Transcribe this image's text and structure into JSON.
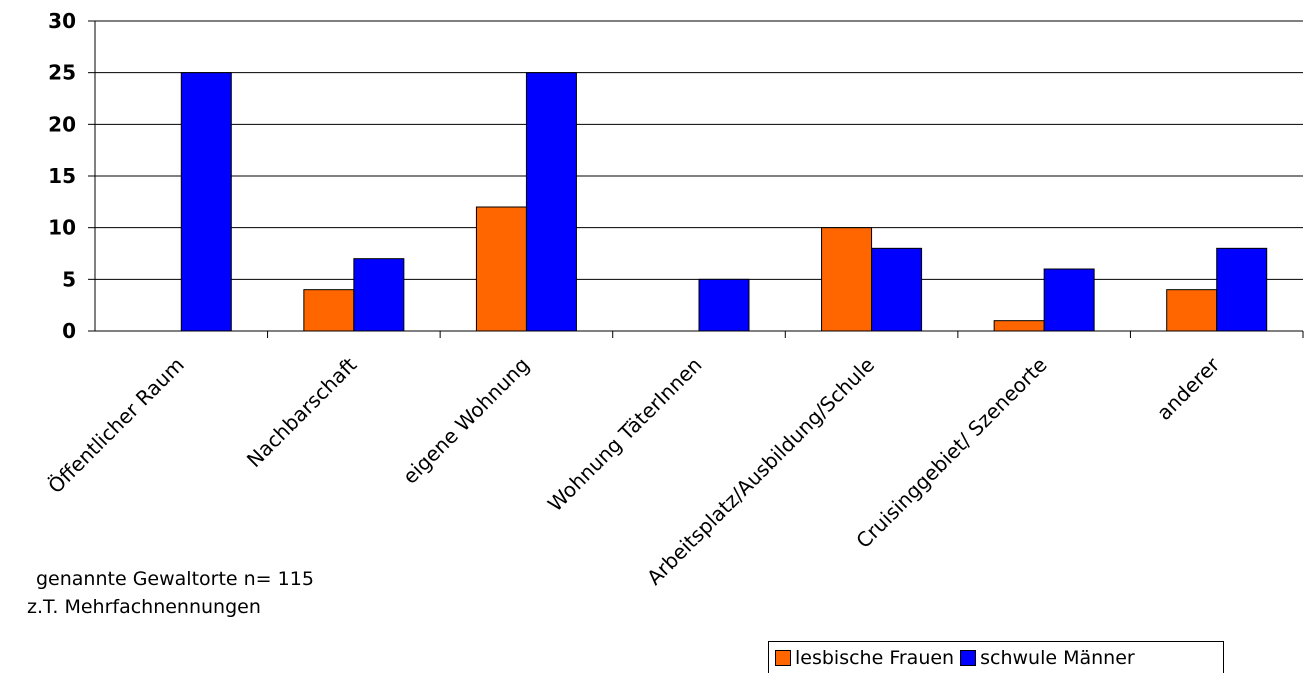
{
  "chart_data": {
    "type": "bar",
    "categories": [
      "Öffentlicher Raum",
      "Nachbarschaft",
      "eigene Wohnung",
      "Wohnung TäterInnen",
      "Arbeitsplatz/Ausbildung/Schule",
      "Cruisinggebiet/ Szeneorte",
      "anderer"
    ],
    "series": [
      {
        "name": "lesbische Frauen",
        "color": "#ff6600",
        "values": [
          0,
          4,
          12,
          0,
          10,
          1,
          4
        ]
      },
      {
        "name": "schwule Männer",
        "color": "#0000ff",
        "values": [
          25,
          7,
          25,
          5,
          8,
          6,
          8
        ]
      }
    ],
    "yticks": [
      "0",
      "5",
      "10",
      "15",
      "20",
      "25",
      "30"
    ],
    "ylim": [
      0,
      30
    ],
    "grid": true,
    "legend_position": "bottom-right"
  },
  "notes": {
    "line1": "genannte Gewaltorte n= 115",
    "line2": "z.T. Mehrfachnennungen"
  }
}
